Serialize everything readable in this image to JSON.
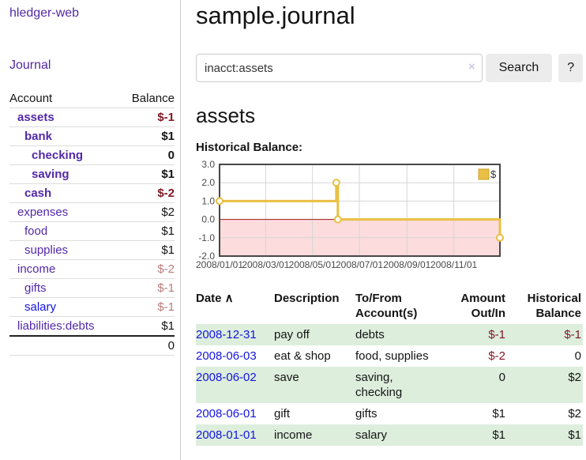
{
  "colors": {
    "link_purple": "#5229a8",
    "link_blue": "#1414e0",
    "negative": "#7f1722",
    "negative_dim": "#b97b7b",
    "row_shade_green": "#ddeedd",
    "button_gray": "#ececec",
    "clear_lavender": "#cfc6e0",
    "divider": "#cccccc",
    "rule": "#dddddd"
  },
  "sidebar": {
    "brand": "hledger-web",
    "journal_link": "Journal",
    "accounts": {
      "headers": {
        "account": "Account",
        "balance": "Balance"
      },
      "rows": [
        {
          "name": "assets",
          "depth": 0,
          "bold": true,
          "balance": "$-1",
          "balance_style": "negative"
        },
        {
          "name": "bank",
          "depth": 1,
          "bold": true,
          "balance": "$1",
          "balance_style": ""
        },
        {
          "name": "checking",
          "depth": 2,
          "bold": true,
          "balance": "0",
          "balance_style": ""
        },
        {
          "name": "saving",
          "depth": 2,
          "bold": true,
          "balance": "$1",
          "balance_style": ""
        },
        {
          "name": "cash",
          "depth": 1,
          "bold": true,
          "balance": "$-2",
          "balance_style": "negative"
        },
        {
          "name": "expenses",
          "depth": 0,
          "bold": false,
          "balance": "$2",
          "balance_style": ""
        },
        {
          "name": "food",
          "depth": 1,
          "bold": false,
          "balance": "$1",
          "balance_style": ""
        },
        {
          "name": "supplies",
          "depth": 1,
          "bold": false,
          "balance": "$1",
          "balance_style": ""
        },
        {
          "name": "income",
          "depth": 0,
          "bold": false,
          "balance": "$-2",
          "balance_style": "negative-dim"
        },
        {
          "name": "gifts",
          "depth": 1,
          "bold": false,
          "balance": "$-1",
          "balance_style": "negative-dim"
        },
        {
          "name": "salary",
          "depth": 1,
          "bold": false,
          "balance": "$-1",
          "balance_style": "negative-dim",
          "link": "blue"
        },
        {
          "name": "liabilities:debts",
          "depth": 0,
          "bold": false,
          "balance": "$1",
          "balance_style": ""
        }
      ],
      "total": "0"
    }
  },
  "main": {
    "title": "sample.journal",
    "search": {
      "value": "inacct:assets",
      "clear_icon": "×",
      "search_label": "Search",
      "help_label": "?"
    },
    "account_heading": "assets",
    "chart_heading": "Historical Balance:",
    "chart_data": {
      "type": "line",
      "step": true,
      "title": "Historical Balance",
      "series": [
        {
          "name": "$",
          "color": "#e9c043",
          "points": [
            {
              "date": "2008-01-01",
              "day": 0,
              "value": 1
            },
            {
              "date": "2008-06-01",
              "day": 152,
              "value": 2
            },
            {
              "date": "2008-06-03",
              "day": 154,
              "value": 0
            },
            {
              "date": "2008-12-31",
              "day": 365,
              "value": -1
            }
          ]
        }
      ],
      "xlim": [
        0,
        365
      ],
      "ylim": [
        -2,
        3
      ],
      "yticks": [
        {
          "value": 3,
          "label": "3.0"
        },
        {
          "value": 2,
          "label": "2.0"
        },
        {
          "value": 1,
          "label": "1.0"
        },
        {
          "value": 0,
          "label": "0.0"
        },
        {
          "value": -1,
          "label": "-1.0"
        },
        {
          "value": -2,
          "label": "-2.0"
        }
      ],
      "xticks": [
        {
          "day": 0,
          "label": "2008/01/01"
        },
        {
          "day": 60,
          "label": "2008/03/01"
        },
        {
          "day": 121,
          "label": "2008/05/01"
        },
        {
          "day": 182,
          "label": "2008/07/01"
        },
        {
          "day": 244,
          "label": "2008/09/01"
        },
        {
          "day": 305,
          "label": "2008/11/01"
        }
      ],
      "grid": true,
      "grid_color": "#d6d6d6",
      "border_color": "#474747",
      "tick_color": "#4a4a4a",
      "negative_region_fill": "#fcdcdc",
      "zero_line_color": "#a31515",
      "legend": {
        "label": "$",
        "position": "top-right"
      }
    },
    "register": {
      "headers": [
        {
          "text": "Date",
          "sort_icon": "∧",
          "align": "left"
        },
        {
          "text": "Description",
          "align": "left"
        },
        {
          "text": "To/From\nAccount(s)",
          "align": "left"
        },
        {
          "text": "Amount\nOut/In",
          "align": "right"
        },
        {
          "text": "Historical\nBalance",
          "align": "right"
        }
      ],
      "rows": [
        {
          "date": "2008-12-31",
          "description": "pay off",
          "accounts": "debts",
          "amount": "$-1",
          "amount_style": "negative",
          "balance": "$-1",
          "balance_style": "negative",
          "shaded": true
        },
        {
          "date": "2008-06-03",
          "description": "eat & shop",
          "accounts": "food, supplies",
          "amount": "$-2",
          "amount_style": "negative",
          "balance": "0",
          "balance_style": "",
          "shaded": false
        },
        {
          "date": "2008-06-02",
          "description": "save",
          "accounts": "saving, checking",
          "amount": "0",
          "amount_style": "",
          "balance": "$2",
          "balance_style": "",
          "shaded": true
        },
        {
          "date": "2008-06-01",
          "description": "gift",
          "accounts": "gifts",
          "amount": "$1",
          "amount_style": "",
          "balance": "$2",
          "balance_style": "",
          "shaded": false
        },
        {
          "date": "2008-01-01",
          "description": "income",
          "accounts": "salary",
          "amount": "$1",
          "amount_style": "",
          "balance": "$1",
          "balance_style": "",
          "shaded": true
        }
      ]
    }
  }
}
